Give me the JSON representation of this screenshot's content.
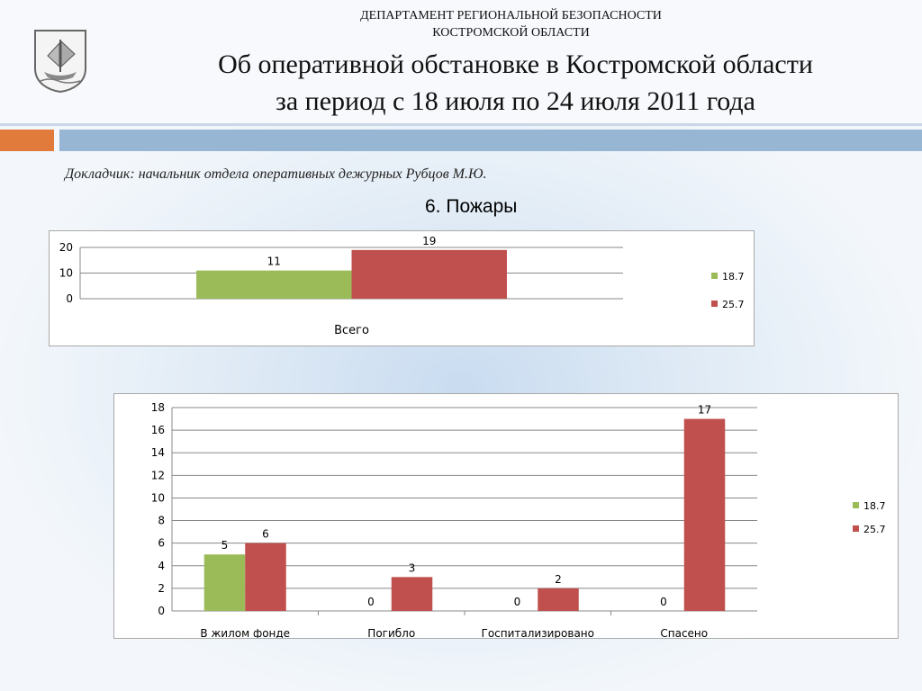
{
  "header": {
    "department_line1": "ДЕПАРТАМЕНТ РЕГИОНАЛЬНОЙ БЕЗОПАСНОСТИ",
    "department_line2": "КОСТРОМСКОЙ ОБЛАСТИ",
    "title_line1": "Об оперативной обстановке в Костромской области",
    "title_line2": "за период с 18 июля по 24 июля 2011 года",
    "logo_icon": "coat-of-arms-ship-icon"
  },
  "reporter": "Докладчик: начальник отдела оперативных дежурных Рубцов М.Ю.",
  "section_title": "6. Пожары",
  "colors": {
    "green": "#9bbb59",
    "red": "#c0504d",
    "orange": "#e07b3c",
    "blue": "#97b6d4"
  },
  "chart_data": [
    {
      "type": "bar",
      "categories": [
        "Всего"
      ],
      "series": [
        {
          "name": "18.7",
          "values": [
            11
          ],
          "color": "#9bbb59"
        },
        {
          "name": "25.7",
          "values": [
            19
          ],
          "color": "#c0504d"
        }
      ],
      "yticks": [
        0,
        10,
        20
      ],
      "ylim": [
        0,
        20
      ],
      "legend": "right"
    },
    {
      "type": "bar",
      "categories": [
        "В жилом фонде",
        "Погибло",
        "Госпитализировано",
        "Спасено"
      ],
      "series": [
        {
          "name": "18.7",
          "values": [
            5,
            0,
            0,
            0
          ],
          "color": "#9bbb59"
        },
        {
          "name": "25.7",
          "values": [
            6,
            3,
            2,
            17
          ],
          "color": "#c0504d"
        }
      ],
      "yticks": [
        0,
        2,
        4,
        6,
        8,
        10,
        12,
        14,
        16,
        18
      ],
      "ylim": [
        0,
        18
      ],
      "legend": "right"
    }
  ]
}
